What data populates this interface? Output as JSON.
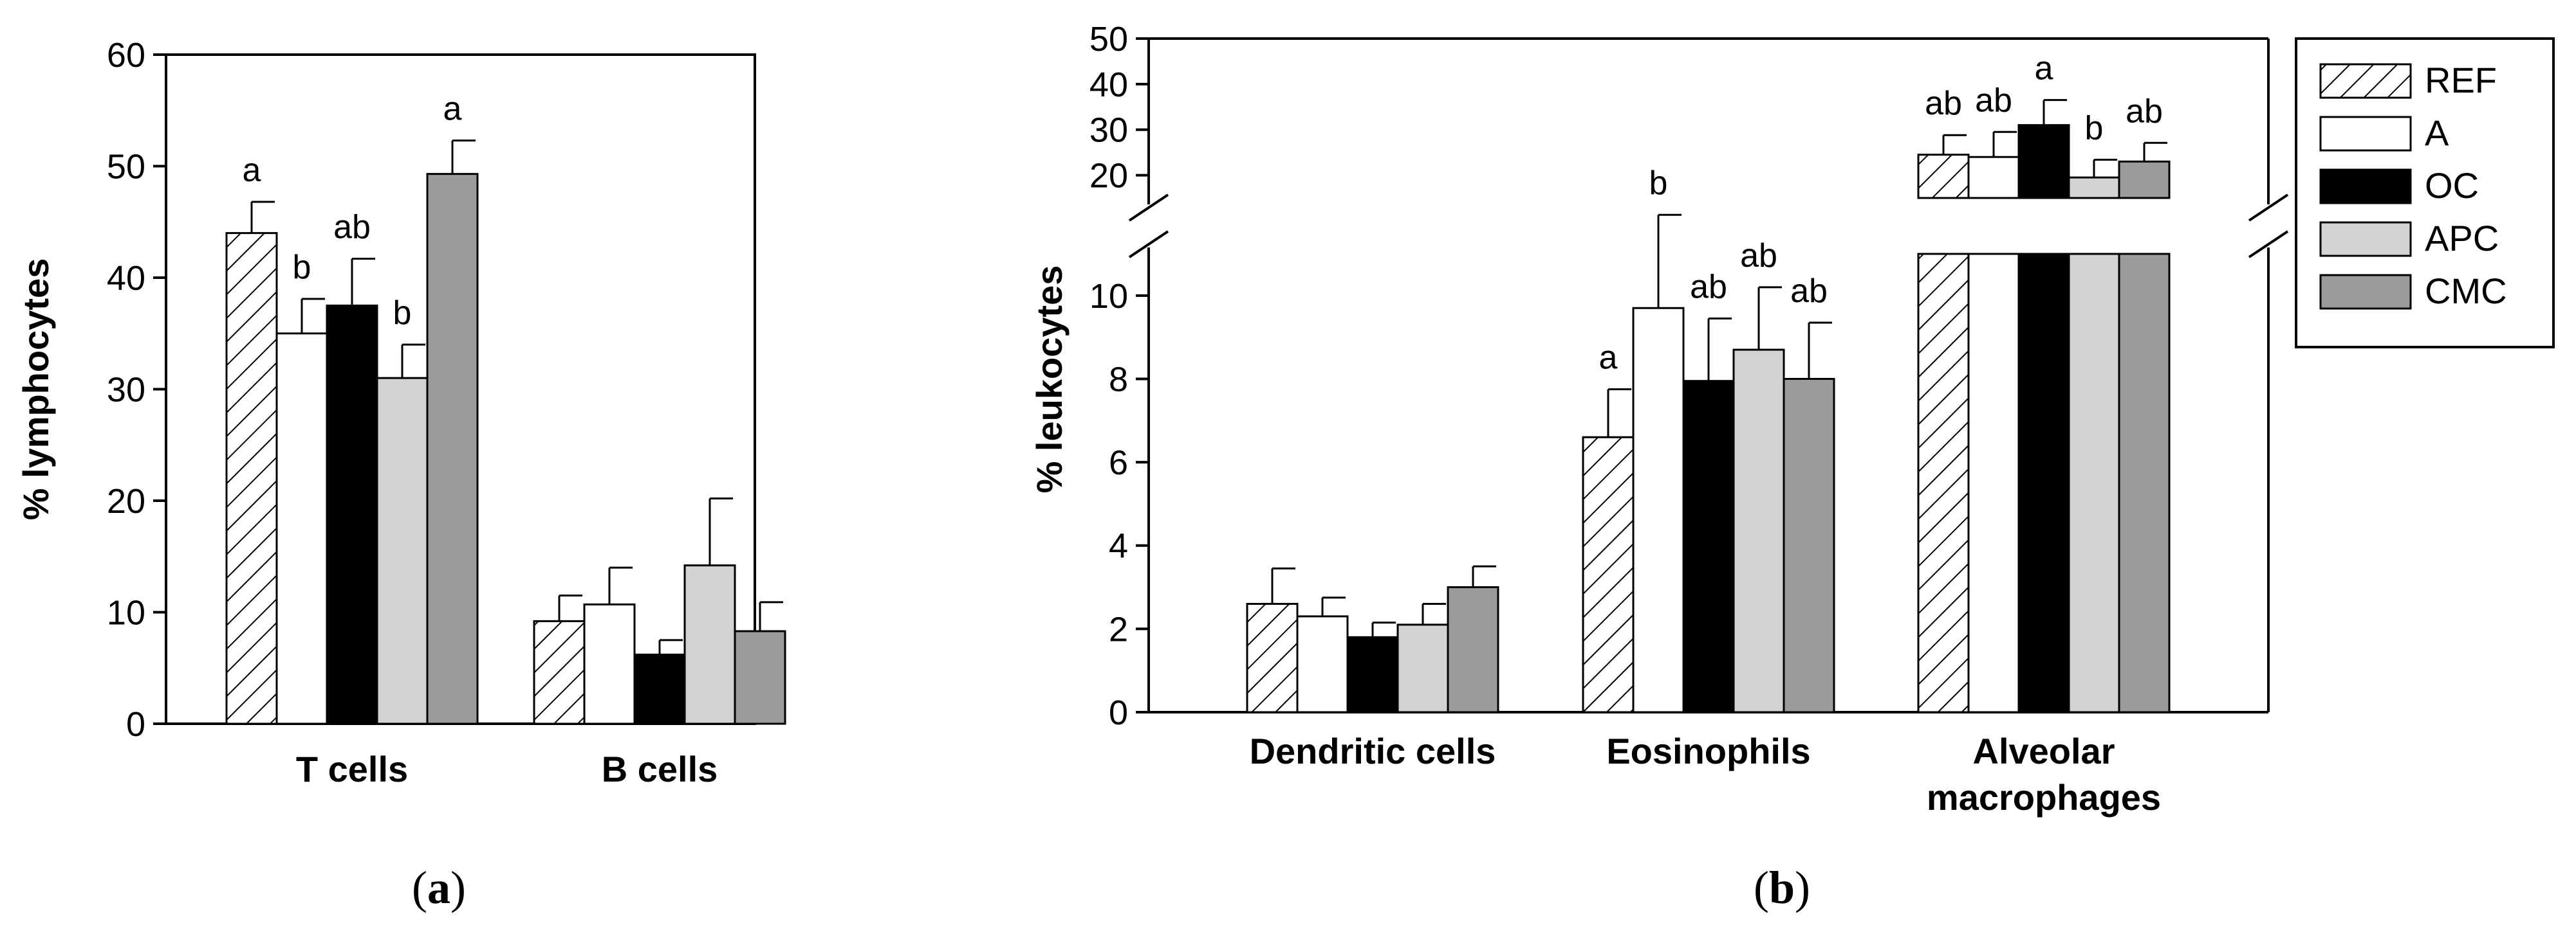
{
  "colors": {
    "REF": "#ffffff",
    "A": "#ffffff",
    "OC": "#000000",
    "APC": "#d3d3d3",
    "CMC": "#9b9b9b",
    "axis": "#000000",
    "background": "#ffffff"
  },
  "legend": {
    "items": [
      {
        "key": "REF",
        "label": "REF",
        "pattern": "hatch"
      },
      {
        "key": "A",
        "label": "A",
        "pattern": "solid"
      },
      {
        "key": "OC",
        "label": "OC",
        "pattern": "solid"
      },
      {
        "key": "APC",
        "label": "APC",
        "pattern": "solid"
      },
      {
        "key": "CMC",
        "label": "CMC",
        "pattern": "solid"
      }
    ]
  },
  "panels": {
    "a": {
      "open": "(",
      "letter": "a",
      "close": ")"
    },
    "b": {
      "open": "(",
      "letter": "b",
      "close": ")"
    }
  },
  "chart_data": [
    {
      "id": "a",
      "type": "bar",
      "ylabel": "% lymphocytes",
      "xlabel": "",
      "ylim": [
        0,
        60
      ],
      "yticks": [
        0,
        10,
        20,
        30,
        40,
        50,
        60
      ],
      "categories": [
        "T cells",
        "B cells"
      ],
      "series": [
        {
          "name": "REF",
          "values": [
            44,
            9.2
          ],
          "errors": [
            2.8,
            2.3
          ],
          "letters": [
            "a",
            ""
          ]
        },
        {
          "name": "A",
          "values": [
            35,
            10.7
          ],
          "errors": [
            3.1,
            3.3
          ],
          "letters": [
            "b",
            ""
          ]
        },
        {
          "name": "OC",
          "values": [
            37.5,
            6.2
          ],
          "errors": [
            4.2,
            1.3
          ],
          "letters": [
            "ab",
            ""
          ]
        },
        {
          "name": "APC",
          "values": [
            31,
            14.2
          ],
          "errors": [
            3.0,
            6.0
          ],
          "letters": [
            "b",
            ""
          ]
        },
        {
          "name": "CMC",
          "values": [
            49.3,
            8.3
          ],
          "errors": [
            3.0,
            2.6
          ],
          "letters": [
            "a",
            ""
          ]
        }
      ]
    },
    {
      "id": "b",
      "type": "bar",
      "ylabel": "% leukocytes",
      "xlabel": "",
      "axis_break": {
        "lower": [
          0,
          11
        ],
        "upper": [
          15,
          50
        ]
      },
      "yticks_lower": [
        0,
        2,
        4,
        6,
        8,
        10
      ],
      "yticks_upper": [
        20,
        30,
        40,
        50
      ],
      "categories": [
        "Dendritic cells",
        "Eosinophils",
        "Alveolar macrophages"
      ],
      "series": [
        {
          "name": "REF",
          "values": [
            2.6,
            6.6,
            24.5
          ],
          "errors": [
            0.85,
            1.15,
            4.3
          ],
          "letters": [
            "",
            "a",
            "ab"
          ]
        },
        {
          "name": "A",
          "values": [
            2.3,
            9.7,
            24
          ],
          "errors": [
            0.45,
            1.6,
            5.5
          ],
          "letters": [
            "",
            "b",
            "ab"
          ]
        },
        {
          "name": "OC",
          "values": [
            1.8,
            7.95,
            31
          ],
          "errors": [
            0.35,
            1.5,
            5.5
          ],
          "letters": [
            "",
            "ab",
            "a"
          ]
        },
        {
          "name": "APC",
          "values": [
            2.1,
            8.7,
            19.5
          ],
          "errors": [
            0.5,
            1.5,
            3.9
          ],
          "letters": [
            "",
            "ab",
            "b"
          ]
        },
        {
          "name": "CMC",
          "values": [
            3.0,
            8.0,
            23
          ],
          "errors": [
            0.5,
            1.35,
            4.1
          ],
          "letters": [
            "",
            "ab",
            "ab"
          ]
        }
      ]
    }
  ]
}
